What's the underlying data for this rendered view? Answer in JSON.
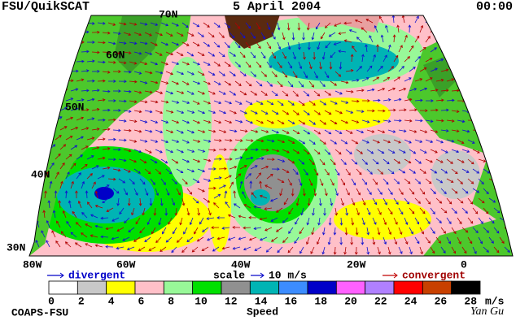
{
  "header": {
    "left": "FSU/QuikSCAT",
    "center": "5 April 2004",
    "right": "00:00"
  },
  "map": {
    "lat_labels": [
      "70N",
      "60N",
      "50N",
      "40N",
      "30N"
    ],
    "lon_labels": [
      "80W",
      "60W",
      "40W",
      "20W",
      "0"
    ]
  },
  "legend": {
    "divergent": "divergent",
    "scale": "scale",
    "scale_value": "10 m/s",
    "convergent": "convergent"
  },
  "colorbar": {
    "colors": [
      "#ffffff",
      "#c8c8c8",
      "#ffff00",
      "#ffc0c8",
      "#98f898",
      "#00e000",
      "#909090",
      "#00b4b4",
      "#3c8cff",
      "#0000c8",
      "#ff60ff",
      "#b080ff",
      "#ff0000",
      "#c84000",
      "#000000"
    ],
    "labels": [
      0,
      2,
      4,
      6,
      8,
      10,
      12,
      14,
      16,
      18,
      20,
      22,
      24,
      26,
      28
    ],
    "unit": "m/s",
    "title": "Speed"
  },
  "footer": {
    "left": "COAPS-FSU",
    "signature": "Yan Gu"
  }
}
